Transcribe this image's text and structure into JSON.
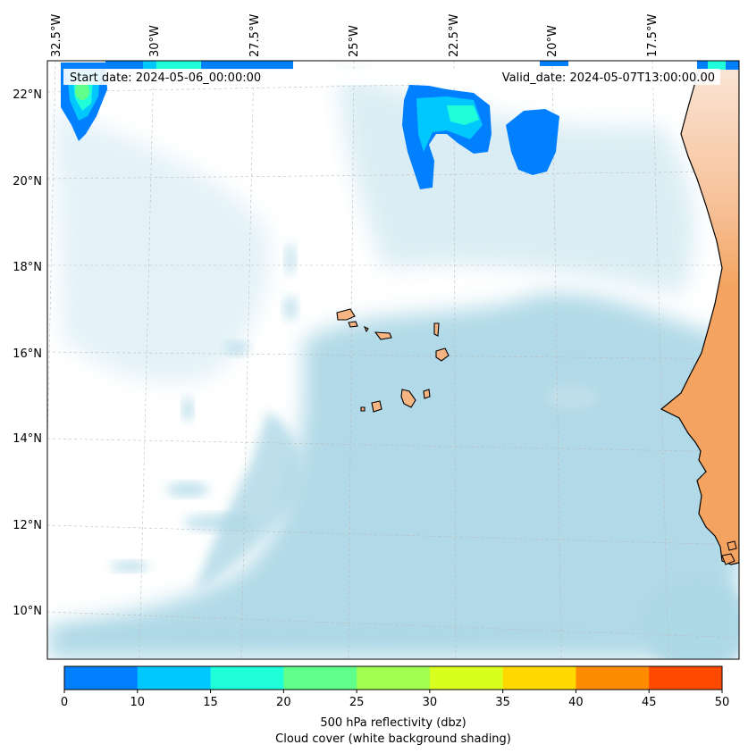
{
  "header": {
    "start_date": "Start date: 2024-05-06_00:00:00",
    "valid_date": "Valid_date: 2024-05-07T13:00:00.00"
  },
  "longitude_labels": [
    "32.5°W",
    "30°W",
    "27.5°W",
    "25°W",
    "22.5°W",
    "20°W",
    "17.5°W"
  ],
  "latitude_labels": [
    "22°N",
    "20°N",
    "18°N",
    "16°N",
    "14°N",
    "12°N",
    "10°N"
  ],
  "colorbar": {
    "ticks": [
      "0",
      "10",
      "15",
      "20",
      "25",
      "30",
      "35",
      "40",
      "45",
      "50"
    ],
    "colors": [
      "#0080ff",
      "#00c8ff",
      "#1effd9",
      "#60ff8c",
      "#a0ff50",
      "#d9ff1e",
      "#ffd800",
      "#ff8c00",
      "#ff4a00"
    ],
    "label_line1": "500 hPa reflectivity (dbz)",
    "label_line2": "Cloud cover (white background shading)"
  },
  "colors": {
    "land": "#f4a460",
    "cloud": "#add8e6",
    "coast": "#000000"
  }
}
